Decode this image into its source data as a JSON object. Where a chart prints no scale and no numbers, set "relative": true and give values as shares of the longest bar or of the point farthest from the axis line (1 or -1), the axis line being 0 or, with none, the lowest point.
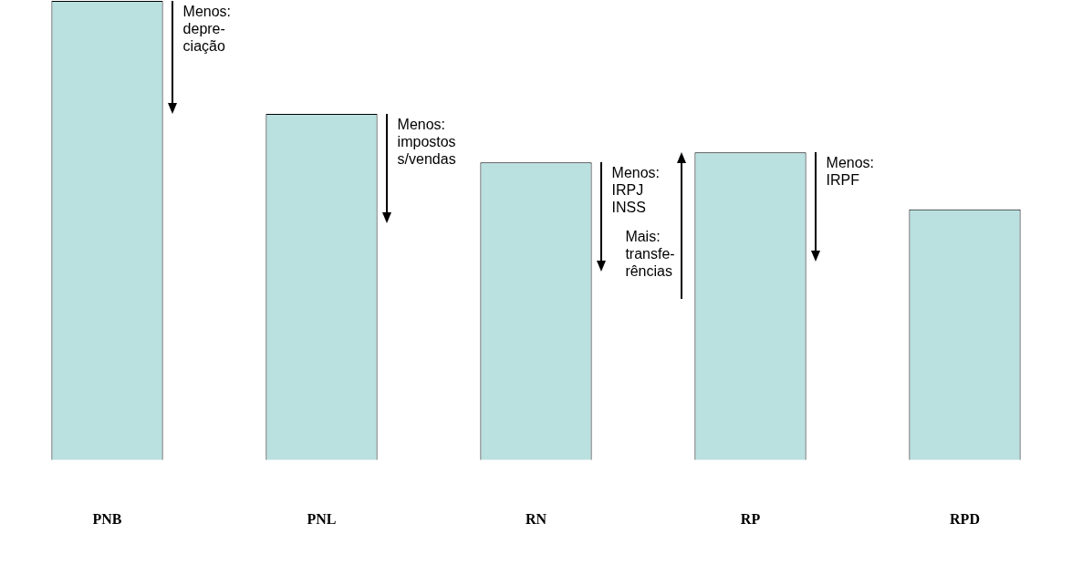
{
  "chart_data": {
    "type": "bar",
    "relative": true,
    "categories": [
      "PNB",
      "PNL",
      "RN",
      "RP",
      "RPD"
    ],
    "values": [
      1,
      0.754,
      0.648,
      0.67,
      0.546
    ],
    "color": "#bae0e0",
    "annotations": [
      "Menos:\ndepre-\nciação",
      "Menos:\nimpostos\ns/vendas",
      "Menos:\nIRPJ\nINSS",
      "Mais:\ntransfe-\nrências",
      "Menos:\nIRPF"
    ]
  }
}
